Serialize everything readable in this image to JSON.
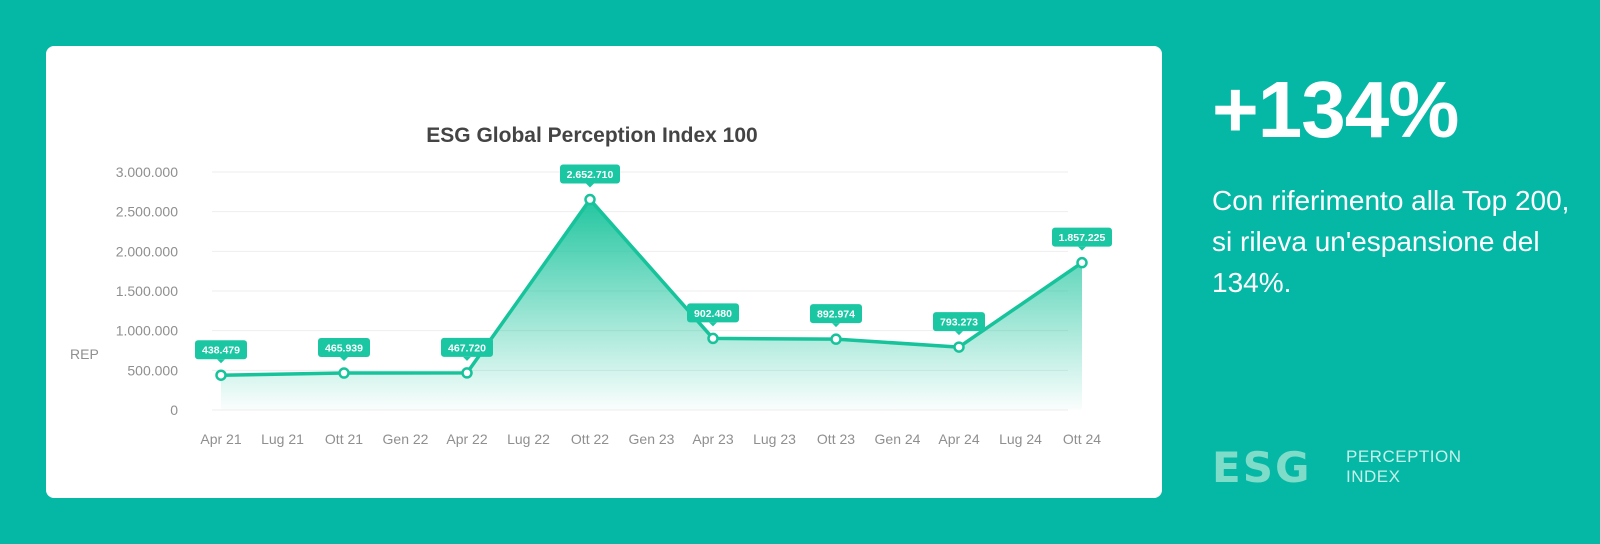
{
  "chart_data": {
    "type": "line",
    "title": "ESG Global Perception Index 100",
    "ylabel": "REP",
    "xlabel": "",
    "x_ticks": [
      "Apr 21",
      "Lug 21",
      "Ott 21",
      "Gen 22",
      "Apr 22",
      "Lug 22",
      "Ott 22",
      "Gen 23",
      "Apr 23",
      "Lug 23",
      "Ott 23",
      "Gen 24",
      "Apr 24",
      "Lug 24",
      "Ott 24"
    ],
    "y_ticks": [
      0,
      500000,
      1000000,
      1500000,
      2000000,
      2500000,
      3000000
    ],
    "y_tick_labels": [
      "0",
      "500.000",
      "1.000.000",
      "1.500.000",
      "2.000.000",
      "2.500.000",
      "3.000.000"
    ],
    "ylim": [
      0,
      3000000
    ],
    "grid": true,
    "area_fill": true,
    "points": [
      {
        "x": "Apr 21",
        "y": 438479,
        "label": "438.479"
      },
      {
        "x": "Ott 21",
        "y": 465939,
        "label": "465.939"
      },
      {
        "x": "Apr 22",
        "y": 467720,
        "label": "467.720"
      },
      {
        "x": "Ott 22",
        "y": 2652710,
        "label": "2.652.710"
      },
      {
        "x": "Apr 23",
        "y": 902480,
        "label": "902.480"
      },
      {
        "x": "Ott 23",
        "y": 892974,
        "label": "892.974"
      },
      {
        "x": "Apr 24",
        "y": 793273,
        "label": "793.273"
      },
      {
        "x": "Ott 24",
        "y": 1857225,
        "label": "1.857.225"
      }
    ]
  },
  "colors": {
    "background": "#05b8a6",
    "line": "#17c39b",
    "label_bg": "#1bc7a3",
    "grid": "#eeeeee",
    "tick_text": "#8f8f8f",
    "title_text": "#444444"
  },
  "highlight": {
    "value": "+134%",
    "description": "Con riferimento alla Top 200, si rileva un'espansione del 134%."
  },
  "logo": {
    "mark": "ESG",
    "line1": "PERCEPTION",
    "line2": "INDEX"
  }
}
